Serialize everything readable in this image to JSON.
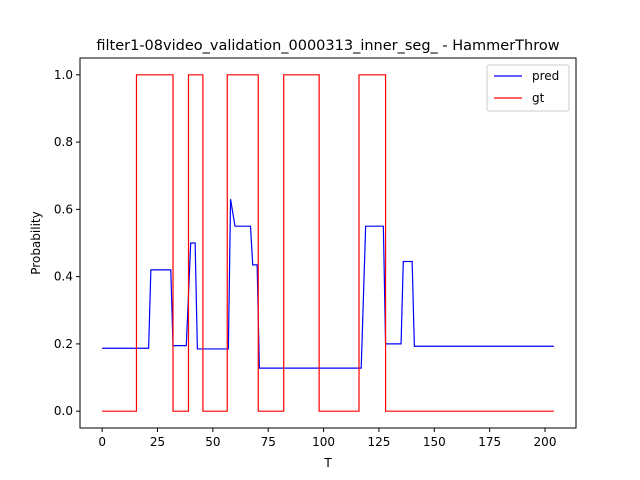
{
  "chart_data": {
    "type": "line",
    "title": "filter1-08video_validation_0000313_inner_seg_ - HammerThrow",
    "xlabel": "T",
    "ylabel": "Probability",
    "xlim": [
      -10,
      214
    ],
    "ylim": [
      -0.05,
      1.05
    ],
    "xticks": [
      0,
      25,
      50,
      75,
      100,
      125,
      150,
      175,
      200
    ],
    "yticks": [
      0.0,
      0.2,
      0.4,
      0.6,
      0.8,
      1.0
    ],
    "xtick_labels": [
      "0",
      "25",
      "50",
      "75",
      "100",
      "125",
      "150",
      "175",
      "200"
    ],
    "ytick_labels": [
      "0.0",
      "0.2",
      "0.4",
      "0.6",
      "0.8",
      "1.0"
    ],
    "legend_position": "top-right",
    "series": [
      {
        "name": "pred",
        "color": "#0000ff",
        "points": [
          [
            0,
            0.187
          ],
          [
            21,
            0.187
          ],
          [
            22,
            0.42
          ],
          [
            31,
            0.42
          ],
          [
            32,
            0.195
          ],
          [
            38,
            0.195
          ],
          [
            40,
            0.5
          ],
          [
            42,
            0.5
          ],
          [
            43,
            0.185
          ],
          [
            57,
            0.185
          ],
          [
            58,
            0.63
          ],
          [
            60,
            0.55
          ],
          [
            67,
            0.55
          ],
          [
            68,
            0.435
          ],
          [
            70,
            0.435
          ],
          [
            71,
            0.128
          ],
          [
            117,
            0.128
          ],
          [
            119,
            0.55
          ],
          [
            127,
            0.55
          ],
          [
            128,
            0.2
          ],
          [
            135,
            0.2
          ],
          [
            136,
            0.445
          ],
          [
            140,
            0.445
          ],
          [
            141,
            0.193
          ],
          [
            204,
            0.193
          ]
        ]
      },
      {
        "name": "gt",
        "color": "#ff0000",
        "points": [
          [
            0,
            0
          ],
          [
            15.5,
            0
          ],
          [
            15.5,
            1
          ],
          [
            32,
            1
          ],
          [
            32,
            0
          ],
          [
            39,
            0
          ],
          [
            39,
            1
          ],
          [
            45.5,
            1
          ],
          [
            45.5,
            0
          ],
          [
            56.5,
            0
          ],
          [
            56.5,
            1
          ],
          [
            70.5,
            1
          ],
          [
            70.5,
            0
          ],
          [
            82,
            0
          ],
          [
            82,
            1
          ],
          [
            98,
            1
          ],
          [
            98,
            0
          ],
          [
            116,
            0
          ],
          [
            116,
            1
          ],
          [
            128,
            1
          ],
          [
            128,
            0
          ],
          [
            204,
            0
          ]
        ]
      }
    ]
  }
}
